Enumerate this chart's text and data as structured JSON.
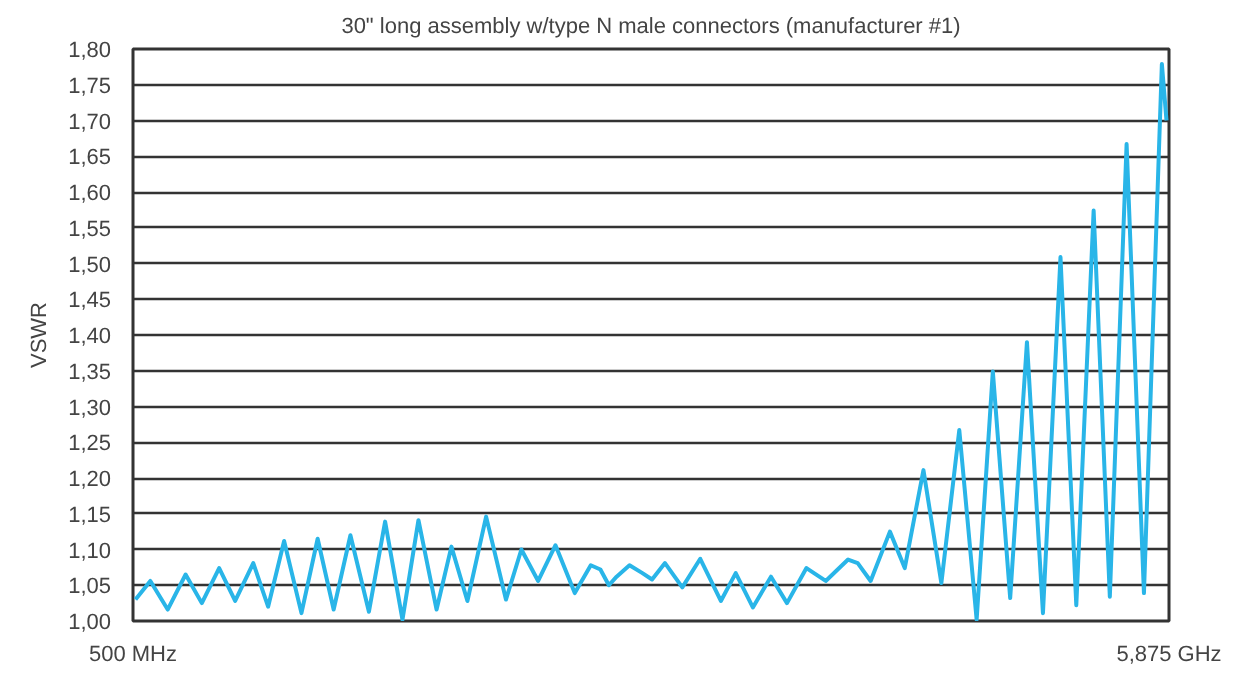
{
  "chart_data": {
    "type": "line",
    "title": "30\" long assembly w/type N male connectors (manufacturer #1)",
    "ylabel": "VSWR",
    "x": [
      513,
      590,
      680,
      773,
      857,
      947,
      1030,
      1124,
      1201,
      1284,
      1374,
      1458,
      1541,
      1628,
      1724,
      1808,
      1898,
      1981,
      2075,
      2152,
      2235,
      2332,
      2435,
      2515,
      2602,
      2692,
      2792,
      2875,
      2925,
      2969,
      3009,
      3076,
      3143,
      3193,
      3260,
      3350,
      3443,
      3550,
      3627,
      3716,
      3810,
      3893,
      3994,
      4094,
      4210,
      4260,
      4327,
      4427,
      4504,
      4601,
      4694,
      4787,
      4877,
      4961,
      5051,
      5138,
      5221,
      5312,
      5394,
      5484,
      5568,
      5655,
      5745,
      5838,
      5862
    ],
    "series": [
      {
        "color": "#29b5e8",
        "values": [
          1.03,
          1.056,
          1.016,
          1.065,
          1.025,
          1.074,
          1.028,
          1.081,
          1.02,
          1.112,
          1.011,
          1.115,
          1.016,
          1.12,
          1.013,
          1.139,
          1.002,
          1.141,
          1.016,
          1.104,
          1.028,
          1.146,
          1.03,
          1.1,
          1.056,
          1.106,
          1.039,
          1.078,
          1.072,
          1.05,
          1.062,
          1.078,
          1.067,
          1.058,
          1.081,
          1.047,
          1.087,
          1.028,
          1.067,
          1.019,
          1.062,
          1.025,
          1.074,
          1.056,
          1.086,
          1.081,
          1.056,
          1.125,
          1.074,
          1.211,
          1.053,
          1.267,
          1.002,
          1.349,
          1.032,
          1.39,
          1.011,
          1.509,
          1.022,
          1.574,
          1.034,
          1.667,
          1.039,
          1.779,
          1.7
        ]
      }
    ],
    "xlim": [
      500,
      5875
    ],
    "xticks": [
      {
        "value": 500,
        "label": "500 MHz"
      },
      {
        "value": 5875,
        "label": "5,875 GHz"
      }
    ],
    "ylim": [
      1.0,
      1.8
    ],
    "yticks": [
      {
        "value": 1.0,
        "label": "1,00"
      },
      {
        "value": 1.05,
        "label": "1,05"
      },
      {
        "value": 1.1,
        "label": "1,10"
      },
      {
        "value": 1.15,
        "label": "1,15"
      },
      {
        "value": 1.2,
        "label": "1,20"
      },
      {
        "value": 1.25,
        "label": "1,25"
      },
      {
        "value": 1.3,
        "label": "1,30"
      },
      {
        "value": 1.35,
        "label": "1,35"
      },
      {
        "value": 1.4,
        "label": "1,40"
      },
      {
        "value": 1.45,
        "label": "1,45"
      },
      {
        "value": 1.5,
        "label": "1,50"
      },
      {
        "value": 1.55,
        "label": "1,55"
      },
      {
        "value": 1.6,
        "label": "1,60"
      },
      {
        "value": 1.65,
        "label": "1,65"
      },
      {
        "value": 1.7,
        "label": "1,70"
      },
      {
        "value": 1.75,
        "label": "1,75"
      },
      {
        "value": 1.8,
        "label": "1,80"
      }
    ],
    "grid": "y"
  }
}
